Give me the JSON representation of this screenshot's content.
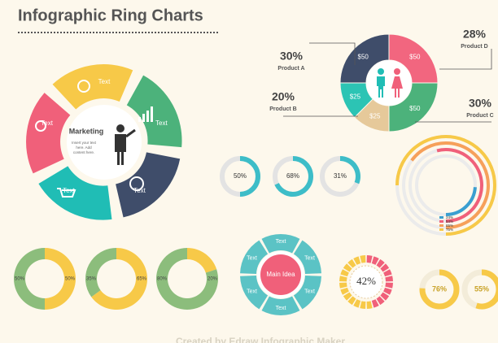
{
  "title": "Infographic Ring Charts",
  "marketing_wheel": {
    "center_title": "Marketing",
    "center_text": [
      "Insert your text",
      "here. Add",
      "content here."
    ],
    "segments": [
      "Text",
      "Text",
      "Text",
      "Text",
      "Text"
    ]
  },
  "chart_data": [
    {
      "type": "donut",
      "values": [
        50,
        50,
        25,
        25,
        50
      ],
      "value_labels": [
        "$50",
        "$50",
        "$25",
        "$25",
        "$50"
      ],
      "colors": [
        "#f2667f",
        "#4cb27b",
        "#e6c99a",
        "#2cc4b4",
        "#3f4d6a"
      ],
      "annotations": [
        {
          "value_label": "28%",
          "label": "Product D"
        },
        {
          "value_label": "30%",
          "label": "Product C"
        },
        {
          "value_label": "20%",
          "label": "Product B"
        },
        {
          "value_label": "30%",
          "label": "Product A"
        }
      ]
    },
    {
      "type": "progress",
      "values": [
        50,
        68,
        31
      ],
      "value_labels": [
        "50%",
        "68%",
        "31%"
      ],
      "color": "#3dbdc8",
      "track_color": "#e3e3e3"
    },
    {
      "type": "radial",
      "values": [
        24,
        54,
        65,
        75
      ],
      "value_labels": [
        "24%",
        "54%",
        "65%",
        "75%"
      ],
      "colors": [
        "#3a9fd0",
        "#f0607a",
        "#f6a05a",
        "#f7c948"
      ],
      "track_color": "#ebebeb"
    },
    {
      "type": "split-donut",
      "series": [
        {
          "color": "#8cbd7c",
          "values": [
            50,
            35,
            80
          ],
          "value_labels": [
            "50%",
            "35%",
            "80%"
          ]
        },
        {
          "color": "#f7c948",
          "values": [
            50,
            65,
            20
          ],
          "value_labels": [
            "50%",
            "65%",
            "20%"
          ]
        }
      ]
    },
    {
      "type": "segmented-ring",
      "values": [
        42
      ],
      "value_labels": [
        "42%"
      ],
      "color": "#f0607a",
      "rest_color": "#f7c948"
    },
    {
      "type": "progress",
      "values": [
        76,
        55
      ],
      "value_labels": [
        "76%",
        "55%"
      ],
      "color": "#f7c948",
      "track_color": "#f3ecd9"
    }
  ],
  "main_idea": {
    "center": "Main Idea",
    "segments": [
      "Text",
      "Text",
      "Text",
      "Text",
      "Text",
      "Text"
    ]
  },
  "footer": "Created by Edraw  Infographic Maker"
}
